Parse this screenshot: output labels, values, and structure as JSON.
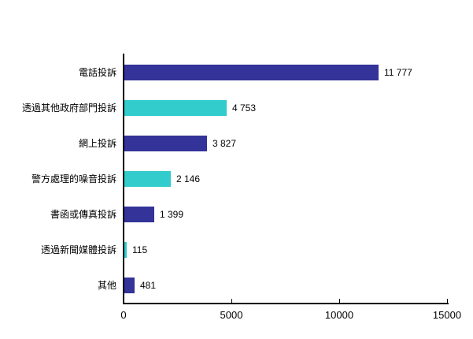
{
  "chart_data": {
    "type": "bar",
    "orientation": "horizontal",
    "title": "",
    "xlabel": "",
    "ylabel": "",
    "grid": false,
    "legend": false,
    "background": "#ffffff",
    "axis_color": "#000000",
    "text_color": "#000000",
    "categories": [
      "電話投訴",
      "透過其他政府部門投訴",
      "網上投訴",
      "警方處理的噪音投訴",
      "書函或傳真投訴",
      "透過新聞媒體投訴",
      "其他"
    ],
    "values": [
      11777,
      4753,
      3827,
      2146,
      1399,
      115,
      481
    ],
    "value_labels": [
      "11 777",
      "4 753",
      "3 827",
      "2 146",
      "1 399",
      "115",
      "481"
    ],
    "bar_colors": [
      "#333399",
      "#33cccc",
      "#333399",
      "#33cccc",
      "#333399",
      "#33cccc",
      "#333399"
    ],
    "xlim": [
      0,
      15000
    ],
    "x_ticks": [
      0,
      5000,
      10000,
      15000
    ],
    "x_tick_labels": [
      "0",
      "5000",
      "10000",
      "15000"
    ]
  }
}
